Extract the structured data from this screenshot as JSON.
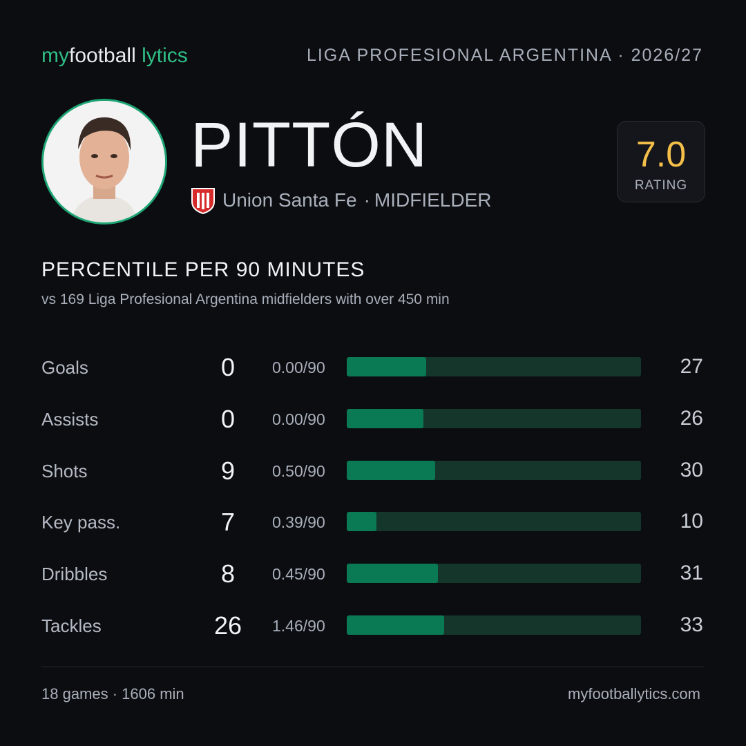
{
  "brand": {
    "my": "my",
    "football": "football",
    "lytics": "lytics"
  },
  "league": "LIGA PROFESIONAL ARGENTINA · 2026/27",
  "player": {
    "name": "PITTÓN",
    "team": "Union Santa Fe",
    "separator": "·",
    "position": "MIDFIELDER"
  },
  "rating": {
    "value": "7.0",
    "label": "RATING"
  },
  "section": {
    "title": "PERCENTILE PER 90 MINUTES",
    "subtitle": "vs 169 Liga Profesional Argentina midfielders with over 450 min"
  },
  "stats": [
    {
      "label": "Goals",
      "total": 0,
      "per90": "0.00/90",
      "percentile": 27
    },
    {
      "label": "Assists",
      "total": 0,
      "per90": "0.00/90",
      "percentile": 26
    },
    {
      "label": "Shots",
      "total": 9,
      "per90": "0.50/90",
      "percentile": 30
    },
    {
      "label": "Key pass.",
      "total": 7,
      "per90": "0.39/90",
      "percentile": 10
    },
    {
      "label": "Dribbles",
      "total": 8,
      "per90": "0.45/90",
      "percentile": 31
    },
    {
      "label": "Tackles",
      "total": 26,
      "per90": "1.46/90",
      "percentile": 33
    }
  ],
  "footer": {
    "left": "18 games · 1606 min",
    "right": "myfootballytics.com"
  }
}
